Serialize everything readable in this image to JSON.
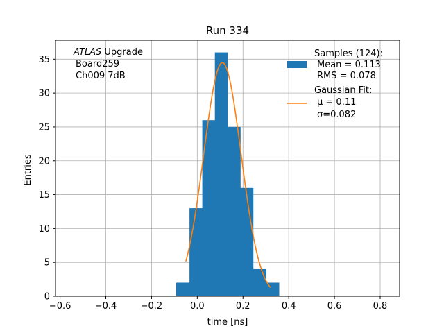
{
  "chart_data": {
    "type": "bar",
    "title": "Run 334",
    "xlabel": "time [ns]",
    "ylabel": "Entries",
    "xlim": [
      -0.62,
      0.885
    ],
    "ylim": [
      0,
      37.8
    ],
    "grid": true,
    "xticks": [
      -0.6,
      -0.4,
      -0.2,
      0.0,
      0.2,
      0.4,
      0.6,
      0.8
    ],
    "xtick_labels": [
      "−0.6",
      "−0.4",
      "−0.2",
      "0.0",
      "0.2",
      "0.4",
      "0.6",
      "0.8"
    ],
    "yticks": [
      0,
      5,
      10,
      15,
      20,
      25,
      30,
      35
    ],
    "ytick_labels": [
      "0",
      "5",
      "10",
      "15",
      "20",
      "25",
      "30",
      "35"
    ],
    "histogram": {
      "color": "#1f77b4",
      "bin_edges": [
        -0.092,
        -0.034,
        0.022,
        0.077,
        0.132,
        0.188,
        0.244,
        0.301,
        0.357
      ],
      "counts": [
        2,
        13,
        26,
        36,
        25,
        16,
        4,
        2
      ]
    },
    "fit": {
      "color": "#ff7f0e",
      "mu": 0.11,
      "sigma": 0.082,
      "amplitude": 34.5,
      "x_range": [
        -0.05,
        0.32
      ]
    },
    "annotation": {
      "lines": [
        "ATLAS Upgrade",
        "Board259",
        "Ch009 7dB"
      ],
      "italic_word": "ATLAS",
      "rest_of_first_line": " Upgrade"
    },
    "legend": {
      "placement": "top-right",
      "samples": {
        "lines": [
          "Samples (124):",
          "Mean = 0.113",
          "RMS = 0.078"
        ]
      },
      "fit": {
        "lines": [
          "Gaussian Fit:",
          "μ = 0.11",
          "σ=0.082"
        ]
      }
    }
  }
}
